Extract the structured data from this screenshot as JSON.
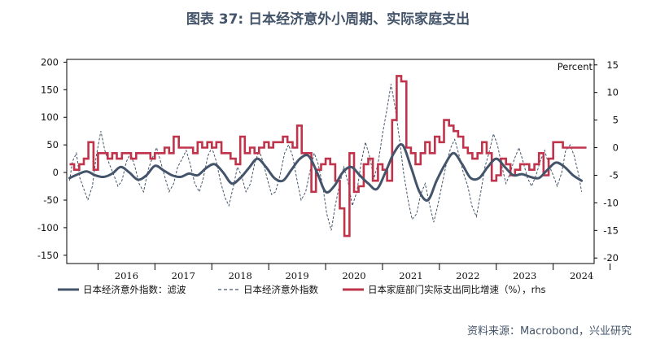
{
  "title": "图表 37: 日本经济意外小周期、实际家庭支出",
  "source": "资料来源：Macrobond，兴业研究",
  "chart_data": {
    "type": "line",
    "title": "图表 37: 日本经济意外小周期、实际家庭支出",
    "x_labels": [
      "2016",
      "2017",
      "2018",
      "2019",
      "2020",
      "2021",
      "2022",
      "2023",
      "2024"
    ],
    "y_left": {
      "ticks": [
        "200",
        "150",
        "100",
        "50",
        "0",
        "-50",
        "-100",
        "-150"
      ],
      "range": [
        -165,
        205
      ]
    },
    "y_right": {
      "label": "Percent",
      "ticks": [
        "15",
        "10",
        "5",
        "0",
        "-5",
        "-10",
        "-15",
        "-20"
      ],
      "range": [
        -21,
        16
      ]
    },
    "colors": {
      "filtered": "#44546A",
      "index": "#44546A",
      "household": "#C0344B"
    },
    "series": [
      {
        "name": "日本经济意外指数：滤波",
        "axis": "left",
        "style": "solid",
        "x": [
          2015.5,
          2015.65,
          2015.8,
          2015.95,
          2016.1,
          2016.25,
          2016.4,
          2016.55,
          2016.7,
          2016.85,
          2017.0,
          2017.15,
          2017.3,
          2017.45,
          2017.6,
          2017.75,
          2017.9,
          2018.05,
          2018.2,
          2018.35,
          2018.5,
          2018.65,
          2018.8,
          2018.95,
          2019.1,
          2019.25,
          2019.4,
          2019.55,
          2019.7,
          2019.85,
          2020.0,
          2020.15,
          2020.3,
          2020.45,
          2020.6,
          2020.75,
          2020.9,
          2021.05,
          2021.2,
          2021.35,
          2021.5,
          2021.65,
          2021.8,
          2021.95,
          2022.1,
          2022.25,
          2022.4,
          2022.55,
          2022.7,
          2022.85,
          2023.0,
          2023.15,
          2023.3,
          2023.45,
          2023.6,
          2023.75,
          2023.9,
          2024.05,
          2024.2,
          2024.35,
          2024.5
        ],
        "y": [
          -10,
          -3,
          2,
          -5,
          -8,
          -2,
          10,
          0,
          -13,
          -5,
          12,
          4,
          -5,
          -8,
          -2,
          -5,
          8,
          15,
          0,
          -20,
          -10,
          8,
          25,
          10,
          -10,
          -15,
          5,
          25,
          30,
          0,
          -35,
          -25,
          0,
          10,
          -5,
          -20,
          -30,
          0,
          35,
          50,
          10,
          -35,
          -50,
          -15,
          15,
          35,
          15,
          -10,
          -10,
          10,
          25,
          10,
          -5,
          -3,
          -8,
          -10,
          5,
          18,
          10,
          -5,
          -15
        ]
      },
      {
        "name": "日本经济意外指数",
        "axis": "left",
        "style": "dashed",
        "x": [
          2015.5,
          2015.55,
          2015.62,
          2015.68,
          2015.75,
          2015.82,
          2015.9,
          2015.97,
          2016.05,
          2016.12,
          2016.2,
          2016.28,
          2016.35,
          2016.42,
          2016.5,
          2016.57,
          2016.65,
          2016.72,
          2016.8,
          2016.88,
          2016.95,
          2017.03,
          2017.1,
          2017.18,
          2017.25,
          2017.33,
          2017.4,
          2017.48,
          2017.55,
          2017.62,
          2017.7,
          2017.78,
          2017.85,
          2017.93,
          2018.0,
          2018.08,
          2018.15,
          2018.23,
          2018.3,
          2018.38,
          2018.45,
          2018.52,
          2018.6,
          2018.68,
          2018.75,
          2018.83,
          2018.9,
          2018.97,
          2019.05,
          2019.12,
          2019.2,
          2019.28,
          2019.35,
          2019.42,
          2019.5,
          2019.57,
          2019.65,
          2019.72,
          2019.8,
          2019.87,
          2019.95,
          2020.02,
          2020.1,
          2020.17,
          2020.25,
          2020.32,
          2020.4,
          2020.47,
          2020.55,
          2020.62,
          2020.7,
          2020.77,
          2020.85,
          2020.92,
          2021.0,
          2021.07,
          2021.15,
          2021.22,
          2021.3,
          2021.37,
          2021.45,
          2021.52,
          2021.6,
          2021.67,
          2021.75,
          2021.82,
          2021.9,
          2021.97,
          2022.05,
          2022.12,
          2022.2,
          2022.27,
          2022.35,
          2022.42,
          2022.5,
          2022.57,
          2022.65,
          2022.72,
          2022.8,
          2022.87,
          2022.95,
          2023.02,
          2023.1,
          2023.17,
          2023.25,
          2023.32,
          2023.4,
          2023.47,
          2023.55,
          2023.62,
          2023.7,
          2023.77,
          2023.85,
          2023.92,
          2024.0,
          2024.07,
          2024.15,
          2024.22,
          2024.3,
          2024.37,
          2024.45,
          2024.5
        ],
        "y": [
          -15,
          20,
          35,
          -10,
          -30,
          -50,
          -25,
          30,
          75,
          40,
          15,
          -5,
          -25,
          -15,
          20,
          35,
          10,
          -20,
          -35,
          5,
          25,
          45,
          20,
          -10,
          -35,
          -20,
          10,
          25,
          40,
          15,
          -20,
          -35,
          -10,
          30,
          45,
          20,
          -15,
          -45,
          -60,
          -25,
          10,
          -5,
          -35,
          -20,
          15,
          40,
          20,
          -10,
          -40,
          -35,
          -5,
          35,
          50,
          30,
          -15,
          -50,
          -35,
          0,
          35,
          15,
          -25,
          -75,
          -105,
          -60,
          -20,
          10,
          -20,
          -60,
          -35,
          15,
          55,
          30,
          -10,
          15,
          70,
          110,
          160,
          120,
          60,
          0,
          -50,
          -85,
          -75,
          -40,
          -20,
          -55,
          -90,
          -60,
          -20,
          15,
          45,
          60,
          30,
          0,
          -25,
          -60,
          -80,
          -40,
          10,
          35,
          70,
          50,
          10,
          -20,
          0,
          25,
          45,
          20,
          -10,
          -25,
          -5,
          20,
          40,
          15,
          -5,
          -25,
          0,
          40,
          50,
          30,
          -5,
          -35
        ]
      },
      {
        "name": "日本家庭部门实际支出同比增速（%），rhs",
        "axis": "right",
        "style": "step",
        "x": [
          2015.5,
          2015.58,
          2015.67,
          2015.75,
          2015.83,
          2015.92,
          2016.0,
          2016.08,
          2016.17,
          2016.25,
          2016.33,
          2016.42,
          2016.5,
          2016.58,
          2016.67,
          2016.75,
          2016.83,
          2016.92,
          2017.0,
          2017.08,
          2017.17,
          2017.25,
          2017.33,
          2017.42,
          2017.5,
          2017.58,
          2017.67,
          2017.75,
          2017.83,
          2017.92,
          2018.0,
          2018.08,
          2018.17,
          2018.25,
          2018.33,
          2018.42,
          2018.5,
          2018.58,
          2018.67,
          2018.75,
          2018.83,
          2018.92,
          2019.0,
          2019.08,
          2019.17,
          2019.25,
          2019.33,
          2019.42,
          2019.5,
          2019.58,
          2019.67,
          2019.75,
          2019.83,
          2019.92,
          2020.0,
          2020.08,
          2020.17,
          2020.25,
          2020.33,
          2020.42,
          2020.5,
          2020.58,
          2020.67,
          2020.75,
          2020.83,
          2020.92,
          2021.0,
          2021.08,
          2021.17,
          2021.25,
          2021.33,
          2021.42,
          2021.5,
          2021.58,
          2021.67,
          2021.75,
          2021.83,
          2021.92,
          2022.0,
          2022.08,
          2022.17,
          2022.25,
          2022.33,
          2022.42,
          2022.5,
          2022.58,
          2022.67,
          2022.75,
          2022.83,
          2022.92,
          2023.0,
          2023.08,
          2023.17,
          2023.25,
          2023.33,
          2023.42,
          2023.5,
          2023.58,
          2023.67,
          2023.75,
          2023.83,
          2023.92,
          2024.0,
          2024.08,
          2024.17,
          2024.25,
          2024.33,
          2024.42,
          2024.5
        ],
        "y": [
          -3,
          -4,
          -3,
          -2,
          1,
          -4,
          -1,
          -1,
          -2,
          -1,
          -2,
          -1,
          -1,
          -2,
          -1,
          -1,
          -1,
          -2,
          -1,
          -1,
          0,
          -1,
          2,
          0,
          0,
          0,
          -1,
          1,
          0,
          1,
          0,
          1,
          -1,
          -1,
          -2,
          -3,
          2,
          -1,
          0,
          -1,
          0,
          1,
          0,
          1,
          1,
          2,
          1,
          0,
          4,
          -1,
          -1,
          -8,
          -4,
          -3,
          -2,
          -3,
          -6,
          -11,
          -16,
          -1,
          -8,
          -7,
          -3,
          -2,
          -6,
          -3,
          -4,
          -6,
          5,
          13,
          12,
          0,
          -1,
          -3,
          -1,
          1,
          -1,
          2,
          1,
          5,
          4,
          3,
          2,
          0,
          -1,
          -2,
          -1,
          1,
          -1,
          -6,
          -5,
          -2,
          -3,
          -5,
          -4,
          -3,
          -3,
          -4,
          -3,
          -1,
          -5,
          -2,
          1,
          1,
          0,
          0,
          0,
          0,
          0
        ]
      }
    ]
  },
  "legend": [
    {
      "label": "日本经济意外指数：滤波"
    },
    {
      "label": "日本经济意外指数"
    },
    {
      "label": "日本家庭部门实际支出同比增速（%），rhs"
    }
  ]
}
